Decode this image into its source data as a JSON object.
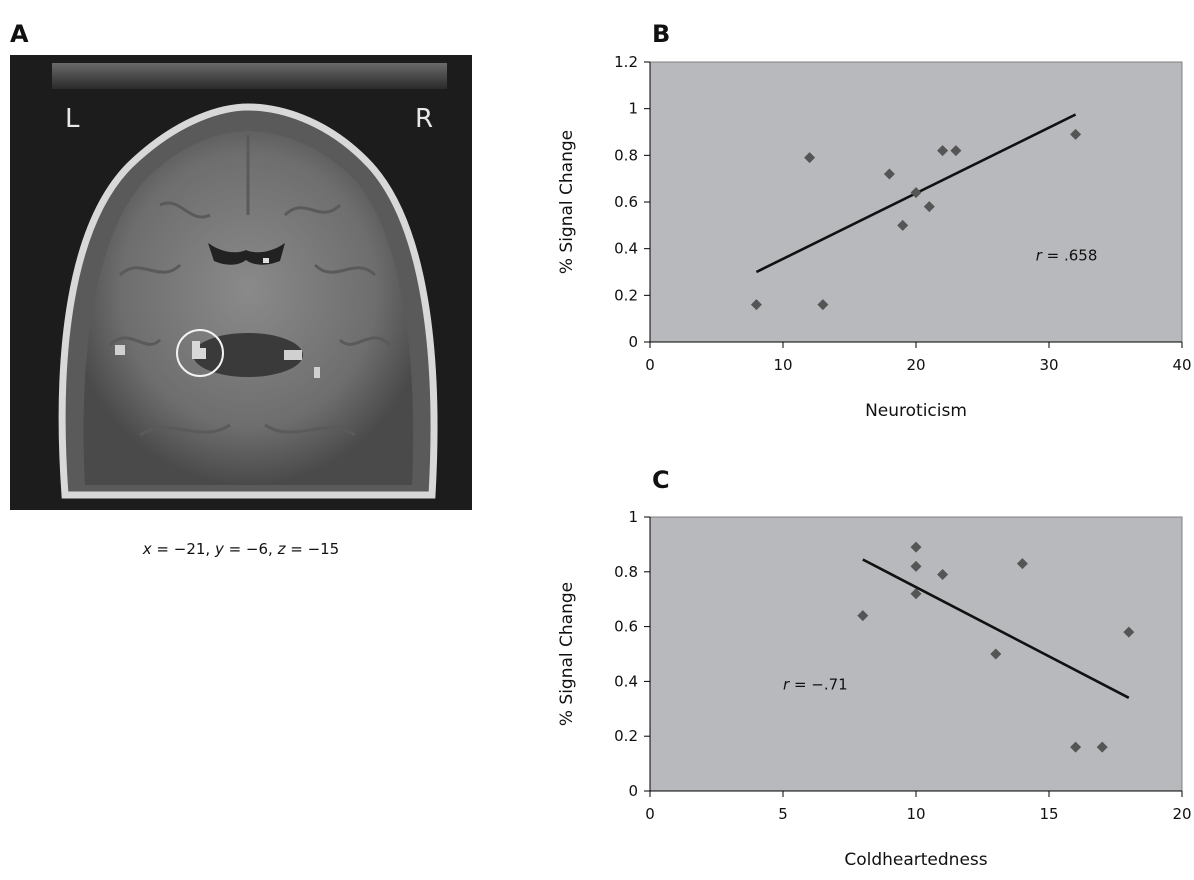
{
  "panel_labels": {
    "a": "A",
    "b": "B",
    "c": "C"
  },
  "brain": {
    "left_label": "L",
    "right_label": "R",
    "coords": {
      "x": "x",
      "xval": " = −21, ",
      "y": "y",
      "yval": " = −6, ",
      "z": "z",
      "zval": " = −15"
    }
  },
  "chart_data": [
    {
      "type": "scatter",
      "panel": "B",
      "title": "",
      "xlabel": "Neuroticism",
      "ylabel": "% Signal Change",
      "xlim": [
        0,
        40
      ],
      "ylim": [
        0,
        1.2
      ],
      "xticks": [
        0,
        10,
        20,
        30,
        40
      ],
      "yticks": [
        0,
        0.2,
        0.4,
        0.6,
        0.8,
        1,
        1.2
      ],
      "xtick_labels": [
        "0",
        "10",
        "20",
        "30",
        "40"
      ],
      "ytick_labels": [
        "0",
        "0.2",
        "0.4",
        "0.6",
        "0.8",
        "1",
        "1.2"
      ],
      "points": [
        [
          8,
          0.16
        ],
        [
          12,
          0.79
        ],
        [
          13,
          0.16
        ],
        [
          18,
          0.72
        ],
        [
          19,
          0.5
        ],
        [
          20,
          0.64
        ],
        [
          21,
          0.58
        ],
        [
          22,
          0.82
        ],
        [
          23,
          0.82
        ],
        [
          32,
          0.89
        ]
      ],
      "trendline": [
        [
          8,
          0.3
        ],
        [
          32,
          0.975
        ]
      ],
      "annotation": {
        "prefix": "r",
        "text": " = .658",
        "x": 29,
        "y": 0.35
      },
      "background_color": "#b8b9bc",
      "marker_color": "#555555",
      "grid": false
    },
    {
      "type": "scatter",
      "panel": "C",
      "title": "",
      "xlabel": "Coldheartedness",
      "ylabel": "% Signal Change",
      "xlim": [
        0,
        20
      ],
      "ylim": [
        0,
        1
      ],
      "xticks": [
        0,
        5,
        10,
        15,
        20
      ],
      "yticks": [
        0,
        0.2,
        0.4,
        0.6,
        0.8,
        1
      ],
      "xtick_labels": [
        "0",
        "5",
        "10",
        "15",
        "20"
      ],
      "ytick_labels": [
        "0",
        "0.2",
        "0.4",
        "0.6",
        "0.8",
        "1"
      ],
      "points": [
        [
          8,
          0.64
        ],
        [
          10,
          0.89
        ],
        [
          10,
          0.82
        ],
        [
          10,
          0.72
        ],
        [
          11,
          0.79
        ],
        [
          13,
          0.5
        ],
        [
          14,
          0.83
        ],
        [
          16,
          0.16
        ],
        [
          17,
          0.16
        ],
        [
          18,
          0.58
        ]
      ],
      "trendline": [
        [
          8,
          0.845
        ],
        [
          18,
          0.34
        ]
      ],
      "annotation": {
        "prefix": "r",
        "text": " = −.71",
        "x": 5,
        "y": 0.37
      },
      "background_color": "#b8b9bc",
      "marker_color": "#555555",
      "grid": false
    }
  ]
}
